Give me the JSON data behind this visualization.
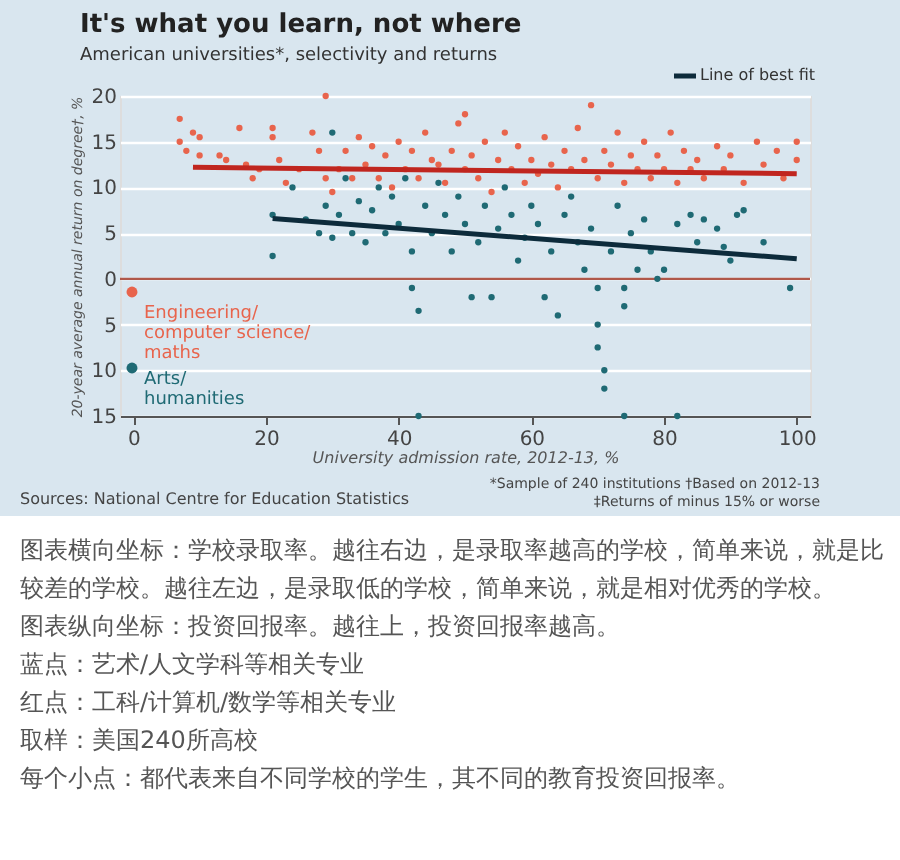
{
  "chart_data": {
    "type": "scatter",
    "title": "It's what you learn, not where",
    "subtitle": "American universities*, selectivity and returns",
    "xlabel": "University admission rate, 2012-13, %",
    "ylabel": "20-year average annual return on degree†, %",
    "xlim": [
      -2,
      102
    ],
    "xticks": [
      0,
      20,
      40,
      60,
      80,
      100
    ],
    "ylim": [
      -15,
      20
    ],
    "yticks": [
      {
        "value": -15,
        "label": "15"
      },
      {
        "value": -10,
        "label": "10"
      },
      {
        "value": -5,
        "label": "5"
      },
      0,
      5,
      10,
      15,
      20
    ],
    "grid": "y",
    "legend": "bottom left",
    "ref_lines": [
      {
        "axis": "y",
        "value": 0,
        "color": "#b0584a"
      }
    ],
    "series": [
      {
        "name": "Engineering/computer science/maths",
        "color": "#e8644c",
        "marker": "circle",
        "x": [
          7,
          7,
          8,
          9,
          10,
          10,
          13,
          14,
          16,
          17,
          18,
          19,
          21,
          21,
          22,
          23,
          25,
          27,
          28,
          29,
          29,
          30,
          31,
          32,
          33,
          34,
          35,
          36,
          37,
          38,
          39,
          40,
          41,
          42,
          43,
          44,
          45,
          46,
          47,
          48,
          49,
          50,
          50,
          51,
          52,
          53,
          54,
          55,
          56,
          57,
          58,
          59,
          60,
          61,
          62,
          63,
          64,
          65,
          66,
          67,
          68,
          69,
          70,
          71,
          72,
          73,
          74,
          75,
          76,
          77,
          78,
          79,
          80,
          81,
          82,
          83,
          84,
          85,
          86,
          88,
          89,
          90,
          92,
          94,
          95,
          97,
          98,
          100,
          100
        ],
        "values": [
          17.5,
          15,
          14,
          16,
          13.5,
          15.5,
          13.5,
          13,
          16.5,
          12.5,
          11,
          12,
          16.5,
          15.5,
          13,
          10.5,
          12,
          16,
          14,
          20,
          11,
          9.5,
          12,
          14,
          11,
          15.5,
          12.5,
          14.5,
          11,
          13.5,
          10,
          15,
          12,
          14,
          11,
          16,
          13,
          12.5,
          10.5,
          14,
          17,
          18,
          12,
          13.5,
          11,
          15,
          9.5,
          13,
          16,
          12,
          14.5,
          10.5,
          13,
          11.5,
          15.5,
          12.5,
          10,
          14,
          12,
          16.5,
          13,
          19,
          11,
          14,
          12.5,
          16,
          10.5,
          13.5,
          12,
          15,
          11,
          13.5,
          12,
          16,
          10.5,
          14,
          12,
          13,
          11,
          14.5,
          12,
          13.5,
          10.5,
          15,
          12.5,
          14,
          11,
          13,
          15
        ]
      },
      {
        "name": "Arts/humanities",
        "color": "#1f6a74",
        "marker": "circle",
        "x": [
          21,
          21,
          24,
          26,
          28,
          29,
          30,
          30,
          31,
          32,
          33,
          34,
          35,
          36,
          37,
          38,
          39,
          40,
          41,
          42,
          42,
          43,
          44,
          45,
          46,
          47,
          48,
          49,
          50,
          51,
          52,
          53,
          54,
          55,
          56,
          57,
          58,
          59,
          60,
          61,
          62,
          63,
          64,
          65,
          66,
          67,
          68,
          69,
          70,
          70,
          70,
          71,
          71,
          72,
          73,
          74,
          74,
          75,
          76,
          77,
          78,
          79,
          80,
          82,
          84,
          85,
          86,
          88,
          89,
          90,
          91,
          92,
          95,
          99,
          43,
          74,
          82
        ],
        "values": [
          7,
          2.5,
          10,
          6.5,
          5,
          8,
          16,
          4.5,
          7,
          11,
          5,
          8.5,
          4,
          7.5,
          10,
          5,
          9,
          6,
          11,
          3,
          -1,
          -3.5,
          8,
          5,
          10.5,
          7,
          3,
          9,
          6,
          -2,
          4,
          8,
          -2,
          5.5,
          10,
          7,
          2,
          4.5,
          8,
          6,
          -2,
          3,
          -4,
          7,
          9,
          4,
          1,
          5.5,
          -1,
          -5,
          -7.5,
          -10,
          -12,
          3,
          8,
          -1,
          -3,
          5,
          1,
          6.5,
          3,
          0,
          1,
          6,
          7,
          4,
          6.5,
          5.5,
          3.5,
          2,
          7,
          7.5,
          4,
          -1,
          -15,
          -15,
          -15
        ]
      },
      {
        "type": "line",
        "color": "#c0261f",
        "x": [
          9,
          100
        ],
        "values": [
          12.2,
          11.5
        ]
      },
      {
        "type": "line",
        "color": "#0d2b3b",
        "x": [
          21,
          100
        ],
        "values": [
          6.6,
          2.2
        ]
      }
    ],
    "annotations": [
      "Line of best fit",
      "Sources: National Centre for Education Statistics",
      "*Sample of 240 institutions   †Based on 2012-13",
      "‡Returns of minus 15% or worse",
      "图表横向坐标：学校录取率。越往右边，是录取率越高的学校，简单来说，就是比较差的学校。越往左边，是录取低的学校，简单来说，就是相对优秀的学校。",
      "图表纵向坐标：投资回报率。越往上，投资回报率越高。",
      "蓝点：艺术/人文学科等相关专业",
      "红点：工科/计算机/数学等相关专业",
      "取样：美国240所高校",
      "每个小点：都代表来自不同学校的学生，其不同的教育投资回报率。"
    ]
  }
}
